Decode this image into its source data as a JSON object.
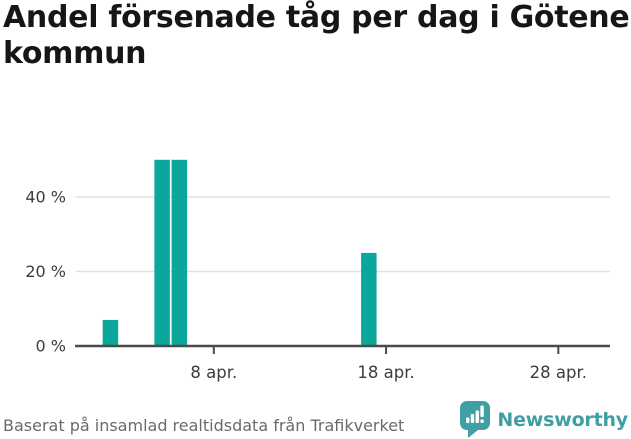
{
  "title": "Andel försenade tåg per dag i Götene kommun",
  "footer": {
    "source": "Baserat på insamlad realtidsdata från Trafikverket",
    "brand": "Newsworthy"
  },
  "colors": {
    "bar": "#0ca79c",
    "brand": "#3f9fa2",
    "grid": "#e0e0e0",
    "axis": "#4a4a4a",
    "axis_text": "#3d3d3d",
    "title_text": "#161616",
    "footer_text": "#6a6a6a",
    "background": "#ffffff"
  },
  "chart_data": {
    "type": "bar",
    "title": "Andel försenade tåg per dag i Götene kommun",
    "xlabel": "",
    "ylabel": "",
    "unit": "%",
    "categories": [
      "2 apr.",
      "5 apr.",
      "6 apr.",
      "17 apr."
    ],
    "values": [
      7,
      50,
      50,
      25
    ],
    "points": [
      {
        "date": "2 apr.",
        "day": 2,
        "value": 7
      },
      {
        "date": "5 apr.",
        "day": 5,
        "value": 50
      },
      {
        "date": "6 apr.",
        "day": 6,
        "value": 50
      },
      {
        "date": "17 apr.",
        "day": 17,
        "value": 25
      }
    ],
    "x_ticks": [
      {
        "day": 8,
        "label": "8 apr."
      },
      {
        "day": 18,
        "label": "18 apr."
      },
      {
        "day": 28,
        "label": "28 apr."
      }
    ],
    "y_ticks": [
      {
        "value": 0,
        "label": "0 %"
      },
      {
        "value": 20,
        "label": "20 %"
      },
      {
        "value": 40,
        "label": "40 %"
      }
    ],
    "xlim_days": [
      0,
      31
    ],
    "ylim": [
      0,
      58
    ],
    "grid": "horizontal",
    "legend": "none",
    "source": "Baserat på insamlad realtidsdata från Trafikverket"
  }
}
